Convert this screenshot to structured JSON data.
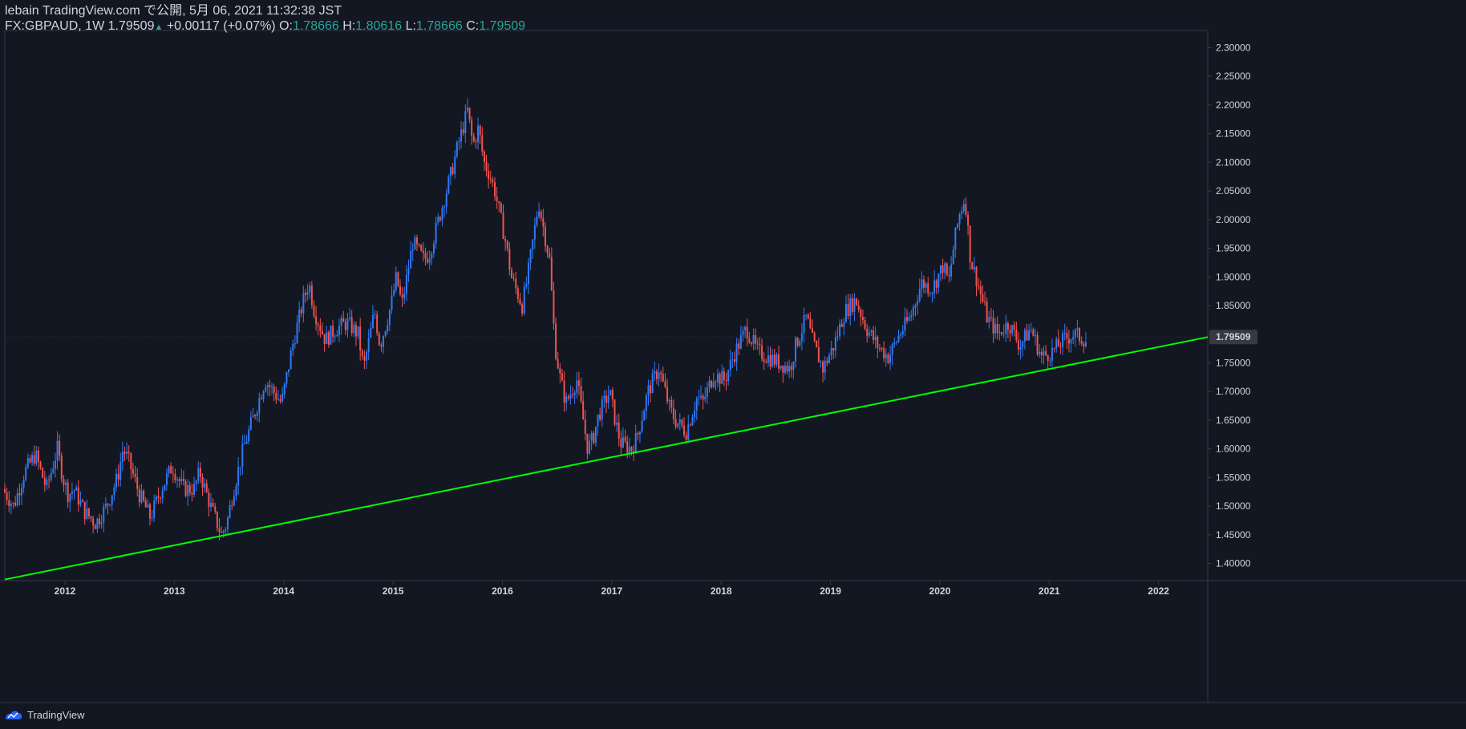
{
  "header": {
    "publisher_line": "lebain TradingView.com で公開, 5月 06, 2021 11:32:38 JST",
    "symbol": "FX:GBPAUD, 1W",
    "last": "1.79509",
    "change": "+0.00117 (+0.07%)",
    "o_label": "O:",
    "o_value": "1.78666",
    "h_label": "H:",
    "h_value": "1.80616",
    "l_label": "L:",
    "l_value": "1.78666",
    "c_label": "C:",
    "c_value": "1.79509"
  },
  "footer": {
    "brand": "TradingView"
  },
  "colors": {
    "background": "#131722",
    "up": "#3179f5",
    "down": "#ef5350",
    "trendline": "#00ff00",
    "axis": "#363a45",
    "text": "#d1d4dc",
    "price_badge": "#363a45"
  },
  "chart_data": {
    "type": "candlestick",
    "symbol": "FX:GBPAUD",
    "interval": "1W",
    "y_axis": {
      "range": [
        1.37,
        2.33
      ],
      "ticks": [
        "1.40000",
        "1.45000",
        "1.50000",
        "1.55000",
        "1.60000",
        "1.65000",
        "1.70000",
        "1.75000",
        "1.80000",
        "1.85000",
        "1.90000",
        "1.95000",
        "2.00000",
        "2.05000",
        "2.10000",
        "2.15000",
        "2.20000",
        "2.25000",
        "2.30000"
      ],
      "current_price_label": "1.79509",
      "current_price": 1.79509
    },
    "x_axis": {
      "range": [
        2011.45,
        2022.45
      ],
      "ticks": [
        "2012",
        "2013",
        "2014",
        "2015",
        "2016",
        "2017",
        "2018",
        "2019",
        "2020",
        "2021",
        "2022"
      ]
    },
    "trendline": {
      "start": [
        2011.45,
        1.372
      ],
      "end": [
        2022.45,
        1.795
      ]
    },
    "price_path": [
      [
        2011.45,
        1.53
      ],
      [
        2011.55,
        1.5
      ],
      [
        2011.65,
        1.56
      ],
      [
        2011.75,
        1.59
      ],
      [
        2011.85,
        1.53
      ],
      [
        2011.95,
        1.6
      ],
      [
        2012.0,
        1.55
      ],
      [
        2012.05,
        1.52
      ],
      [
        2012.1,
        1.53
      ],
      [
        2012.2,
        1.49
      ],
      [
        2012.3,
        1.47
      ],
      [
        2012.4,
        1.5
      ],
      [
        2012.5,
        1.55
      ],
      [
        2012.55,
        1.6
      ],
      [
        2012.6,
        1.58
      ],
      [
        2012.7,
        1.52
      ],
      [
        2012.8,
        1.48
      ],
      [
        2012.9,
        1.53
      ],
      [
        2013.0,
        1.57
      ],
      [
        2013.1,
        1.53
      ],
      [
        2013.2,
        1.53
      ],
      [
        2013.25,
        1.56
      ],
      [
        2013.35,
        1.5
      ],
      [
        2013.45,
        1.45
      ],
      [
        2013.5,
        1.47
      ],
      [
        2013.55,
        1.52
      ],
      [
        2013.65,
        1.6
      ],
      [
        2013.75,
        1.66
      ],
      [
        2013.85,
        1.72
      ],
      [
        2014.0,
        1.68
      ],
      [
        2014.1,
        1.78
      ],
      [
        2014.2,
        1.86
      ],
      [
        2014.25,
        1.89
      ],
      [
        2014.3,
        1.84
      ],
      [
        2014.4,
        1.79
      ],
      [
        2014.5,
        1.81
      ],
      [
        2014.6,
        1.82
      ],
      [
        2014.7,
        1.8
      ],
      [
        2014.75,
        1.74
      ],
      [
        2014.85,
        1.84
      ],
      [
        2014.9,
        1.78
      ],
      [
        2015.0,
        1.85
      ],
      [
        2015.05,
        1.9
      ],
      [
        2015.1,
        1.85
      ],
      [
        2015.2,
        1.96
      ],
      [
        2015.3,
        1.93
      ],
      [
        2015.35,
        1.94
      ],
      [
        2015.45,
        2.01
      ],
      [
        2015.55,
        2.08
      ],
      [
        2015.6,
        2.12
      ],
      [
        2015.7,
        2.19
      ],
      [
        2015.75,
        2.13
      ],
      [
        2015.8,
        2.16
      ],
      [
        2015.85,
        2.1
      ],
      [
        2015.9,
        2.08
      ],
      [
        2015.95,
        2.05
      ],
      [
        2016.05,
        1.96
      ],
      [
        2016.1,
        1.9
      ],
      [
        2016.2,
        1.85
      ],
      [
        2016.25,
        1.9
      ],
      [
        2016.35,
        2.03
      ],
      [
        2016.45,
        1.93
      ],
      [
        2016.5,
        1.78
      ],
      [
        2016.55,
        1.72
      ],
      [
        2016.6,
        1.68
      ],
      [
        2016.7,
        1.72
      ],
      [
        2016.75,
        1.66
      ],
      [
        2016.8,
        1.6
      ],
      [
        2016.85,
        1.62
      ],
      [
        2016.9,
        1.66
      ],
      [
        2017.0,
        1.7
      ],
      [
        2017.05,
        1.65
      ],
      [
        2017.1,
        1.61
      ],
      [
        2017.2,
        1.6
      ],
      [
        2017.25,
        1.62
      ],
      [
        2017.35,
        1.7
      ],
      [
        2017.45,
        1.74
      ],
      [
        2017.55,
        1.67
      ],
      [
        2017.6,
        1.65
      ],
      [
        2017.7,
        1.63
      ],
      [
        2017.75,
        1.66
      ],
      [
        2017.8,
        1.69
      ],
      [
        2017.85,
        1.68
      ],
      [
        2017.95,
        1.73
      ],
      [
        2018.05,
        1.72
      ],
      [
        2018.15,
        1.77
      ],
      [
        2018.25,
        1.81
      ],
      [
        2018.35,
        1.77
      ],
      [
        2018.45,
        1.76
      ],
      [
        2018.55,
        1.75
      ],
      [
        2018.65,
        1.74
      ],
      [
        2018.7,
        1.78
      ],
      [
        2018.8,
        1.83
      ],
      [
        2018.85,
        1.79
      ],
      [
        2018.95,
        1.74
      ],
      [
        2019.05,
        1.78
      ],
      [
        2019.15,
        1.84
      ],
      [
        2019.25,
        1.86
      ],
      [
        2019.35,
        1.81
      ],
      [
        2019.45,
        1.78
      ],
      [
        2019.55,
        1.76
      ],
      [
        2019.65,
        1.8
      ],
      [
        2019.75,
        1.83
      ],
      [
        2019.85,
        1.89
      ],
      [
        2019.95,
        1.88
      ],
      [
        2020.05,
        1.92
      ],
      [
        2020.1,
        1.89
      ],
      [
        2020.15,
        1.96
      ],
      [
        2020.2,
        2.01
      ],
      [
        2020.25,
        2.04
      ],
      [
        2020.3,
        1.93
      ],
      [
        2020.35,
        1.9
      ],
      [
        2020.45,
        1.83
      ],
      [
        2020.55,
        1.8
      ],
      [
        2020.65,
        1.82
      ],
      [
        2020.75,
        1.78
      ],
      [
        2020.85,
        1.81
      ],
      [
        2020.95,
        1.76
      ],
      [
        2021.05,
        1.77
      ],
      [
        2021.15,
        1.79
      ],
      [
        2021.25,
        1.8
      ],
      [
        2021.35,
        1.79
      ]
    ],
    "jitter_seed": 7
  }
}
